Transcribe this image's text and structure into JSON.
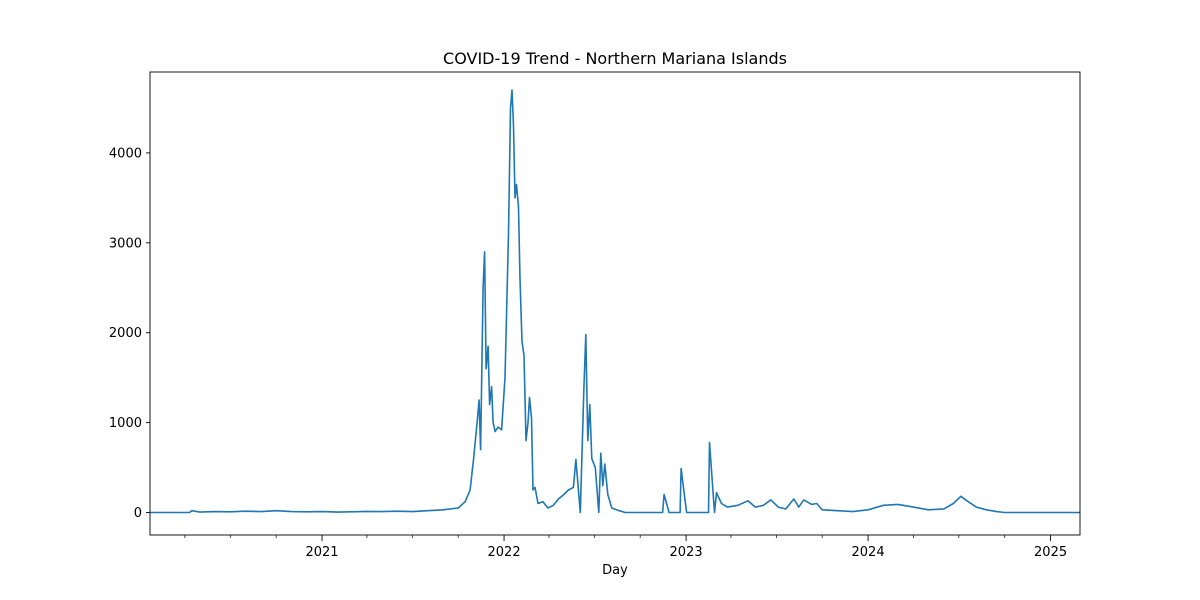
{
  "chart_data": {
    "type": "line",
    "title": "COVID-19 Trend - Northern Mariana Islands",
    "xlabel": "Day",
    "ylabel": "",
    "x_ticks": [
      "2021",
      "2022",
      "2023",
      "2024",
      "2025"
    ],
    "y_ticks": [
      0,
      1000,
      2000,
      3000,
      4000
    ],
    "xlim": [
      "2020-01-22",
      "2025-03-01"
    ],
    "ylim": [
      -250,
      4900
    ],
    "grid": false,
    "line_color": "#1f77b4",
    "series": [
      {
        "values": [
          [
            "2020-01-22",
            0
          ],
          [
            "2020-04-10",
            0
          ],
          [
            "2020-04-15",
            20
          ],
          [
            "2020-05-01",
            5
          ],
          [
            "2020-06-01",
            10
          ],
          [
            "2020-07-01",
            8
          ],
          [
            "2020-08-01",
            15
          ],
          [
            "2020-09-01",
            10
          ],
          [
            "2020-10-01",
            20
          ],
          [
            "2020-11-01",
            10
          ],
          [
            "2020-12-01",
            8
          ],
          [
            "2021-01-01",
            10
          ],
          [
            "2021-02-01",
            5
          ],
          [
            "2021-03-01",
            8
          ],
          [
            "2021-04-01",
            12
          ],
          [
            "2021-05-01",
            10
          ],
          [
            "2021-06-01",
            15
          ],
          [
            "2021-07-01",
            10
          ],
          [
            "2021-08-01",
            20
          ],
          [
            "2021-09-01",
            30
          ],
          [
            "2021-10-01",
            50
          ],
          [
            "2021-10-15",
            120
          ],
          [
            "2021-10-25",
            250
          ],
          [
            "2021-11-01",
            600
          ],
          [
            "2021-11-08",
            1000
          ],
          [
            "2021-11-12",
            1250
          ],
          [
            "2021-11-15",
            700
          ],
          [
            "2021-11-20",
            2500
          ],
          [
            "2021-11-23",
            2900
          ],
          [
            "2021-11-26",
            1600
          ],
          [
            "2021-11-30",
            1850
          ],
          [
            "2021-12-03",
            1200
          ],
          [
            "2021-12-07",
            1400
          ],
          [
            "2021-12-10",
            1000
          ],
          [
            "2021-12-14",
            900
          ],
          [
            "2021-12-20",
            950
          ],
          [
            "2021-12-27",
            920
          ],
          [
            "2022-01-03",
            1500
          ],
          [
            "2022-01-10",
            3100
          ],
          [
            "2022-01-14",
            4500
          ],
          [
            "2022-01-17",
            4700
          ],
          [
            "2022-01-20",
            4300
          ],
          [
            "2022-01-23",
            3500
          ],
          [
            "2022-01-26",
            3650
          ],
          [
            "2022-01-30",
            3400
          ],
          [
            "2022-02-02",
            2600
          ],
          [
            "2022-02-06",
            1900
          ],
          [
            "2022-02-10",
            1750
          ],
          [
            "2022-02-14",
            800
          ],
          [
            "2022-02-18",
            1000
          ],
          [
            "2022-02-21",
            1280
          ],
          [
            "2022-02-25",
            1050
          ],
          [
            "2022-02-28",
            250
          ],
          [
            "2022-03-04",
            280
          ],
          [
            "2022-03-10",
            100
          ],
          [
            "2022-03-20",
            120
          ],
          [
            "2022-03-30",
            50
          ],
          [
            "2022-04-10",
            80
          ],
          [
            "2022-04-20",
            150
          ],
          [
            "2022-05-01",
            200
          ],
          [
            "2022-05-10",
            250
          ],
          [
            "2022-05-20",
            280
          ],
          [
            "2022-05-25",
            590
          ],
          [
            "2022-06-03",
            0
          ],
          [
            "2022-06-10",
            1350
          ],
          [
            "2022-06-14",
            1980
          ],
          [
            "2022-06-18",
            800
          ],
          [
            "2022-06-22",
            1200
          ],
          [
            "2022-06-26",
            600
          ],
          [
            "2022-07-03",
            500
          ],
          [
            "2022-07-10",
            0
          ],
          [
            "2022-07-14",
            660
          ],
          [
            "2022-07-18",
            300
          ],
          [
            "2022-07-22",
            540
          ],
          [
            "2022-07-28",
            200
          ],
          [
            "2022-08-05",
            50
          ],
          [
            "2022-08-20",
            20
          ],
          [
            "2022-09-01",
            0
          ],
          [
            "2022-11-15",
            0
          ],
          [
            "2022-11-18",
            200
          ],
          [
            "2022-11-28",
            0
          ],
          [
            "2022-12-20",
            0
          ],
          [
            "2022-12-22",
            490
          ],
          [
            "2023-01-02",
            0
          ],
          [
            "2023-02-15",
            0
          ],
          [
            "2023-02-17",
            780
          ],
          [
            "2023-02-27",
            0
          ],
          [
            "2023-03-03",
            220
          ],
          [
            "2023-03-13",
            100
          ],
          [
            "2023-03-25",
            60
          ],
          [
            "2023-04-15",
            80
          ],
          [
            "2023-05-05",
            130
          ],
          [
            "2023-05-20",
            60
          ],
          [
            "2023-06-05",
            80
          ],
          [
            "2023-06-20",
            140
          ],
          [
            "2023-07-05",
            60
          ],
          [
            "2023-07-20",
            40
          ],
          [
            "2023-08-05",
            150
          ],
          [
            "2023-08-15",
            60
          ],
          [
            "2023-08-25",
            140
          ],
          [
            "2023-09-10",
            90
          ],
          [
            "2023-09-20",
            100
          ],
          [
            "2023-10-01",
            30
          ],
          [
            "2023-11-01",
            20
          ],
          [
            "2023-12-01",
            10
          ],
          [
            "2024-01-01",
            30
          ],
          [
            "2024-02-01",
            80
          ],
          [
            "2024-03-01",
            90
          ],
          [
            "2024-04-01",
            60
          ],
          [
            "2024-05-01",
            30
          ],
          [
            "2024-06-01",
            40
          ],
          [
            "2024-06-20",
            100
          ],
          [
            "2024-07-05",
            180
          ],
          [
            "2024-07-20",
            120
          ],
          [
            "2024-08-05",
            60
          ],
          [
            "2024-08-25",
            30
          ],
          [
            "2024-09-15",
            10
          ],
          [
            "2024-10-01",
            0
          ],
          [
            "2025-03-01",
            0
          ]
        ]
      }
    ]
  }
}
